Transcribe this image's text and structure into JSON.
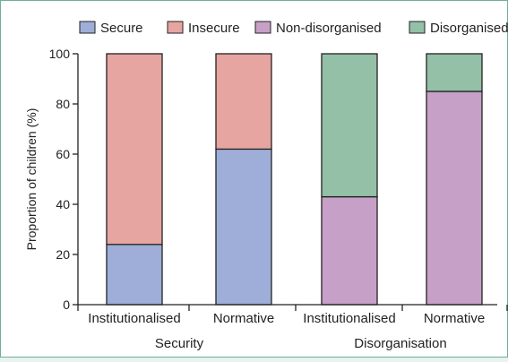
{
  "chart_data": {
    "type": "bar",
    "stacked": true,
    "ylabel": "Proportion of children (%)",
    "ylim": [
      0,
      100
    ],
    "yticks": [
      0,
      20,
      40,
      60,
      80,
      100
    ],
    "grid": false,
    "legend_position": "top",
    "legend": [
      {
        "name": "Secure",
        "color": "#9eaed8"
      },
      {
        "name": "Insecure",
        "color": "#e6a5a1"
      },
      {
        "name": "Non-disorganised",
        "color": "#c6a0c6"
      },
      {
        "name": "Disorganised",
        "color": "#93c0a7"
      }
    ],
    "groups": [
      {
        "label": "Security",
        "bars": [
          {
            "category": "Institutionalised",
            "segments": [
              {
                "series": "Secure",
                "value": 24
              },
              {
                "series": "Insecure",
                "value": 76
              }
            ]
          },
          {
            "category": "Normative",
            "segments": [
              {
                "series": "Secure",
                "value": 62
              },
              {
                "series": "Insecure",
                "value": 38
              }
            ]
          }
        ]
      },
      {
        "label": "Disorganisation",
        "bars": [
          {
            "category": "Institutionalised",
            "segments": [
              {
                "series": "Non-disorganised",
                "value": 43
              },
              {
                "series": "Disorganised",
                "value": 57
              }
            ]
          },
          {
            "category": "Normative",
            "segments": [
              {
                "series": "Non-disorganised",
                "value": 85
              },
              {
                "series": "Disorganised",
                "value": 15
              }
            ]
          }
        ]
      }
    ]
  }
}
